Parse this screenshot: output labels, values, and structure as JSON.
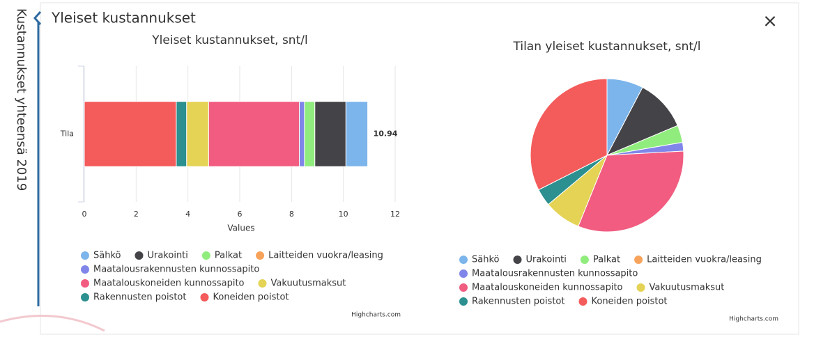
{
  "sidebar": {
    "label": "Kustannukset yhteensä 2019"
  },
  "header": {
    "title": "Yleiset kustannukset",
    "close": "×"
  },
  "chart_data": [
    {
      "type": "stacked-bar-horizontal",
      "title": "Yleiset kustannukset, snt/l",
      "categories": [
        "Tila"
      ],
      "y_label": "Values",
      "ylim": [
        0,
        12
      ],
      "yticks": [
        0,
        2,
        4,
        6,
        8,
        10,
        12
      ],
      "grid": true,
      "total": 10.94,
      "credit": "Highcharts.com",
      "series": [
        {
          "name": "Sähkö",
          "color": "#7cb5ec",
          "values": [
            0.84
          ]
        },
        {
          "name": "Urakointi",
          "color": "#434348",
          "values": [
            1.2
          ]
        },
        {
          "name": "Palkat",
          "color": "#90ed7d",
          "values": [
            0.4
          ]
        },
        {
          "name": "Laitteiden vuokra/leasing",
          "color": "#f7a35c",
          "values": [
            0
          ]
        },
        {
          "name": "Maatalousrakennusten kunnossapito",
          "color": "#8085e9",
          "values": [
            0.2
          ]
        },
        {
          "name": "Maatalouskoneiden kunnossapito",
          "color": "#f15c80",
          "values": [
            3.5
          ]
        },
        {
          "name": "Vakuutusmaksut",
          "color": "#e4d354",
          "values": [
            0.85
          ]
        },
        {
          "name": "Rakennusten poistot",
          "color": "#2b908f",
          "values": [
            0.4
          ]
        },
        {
          "name": "Koneiden poistot",
          "color": "#f45b5b",
          "values": [
            3.55
          ]
        }
      ]
    },
    {
      "type": "pie",
      "title": "Tilan yleiset kustannukset, snt/l",
      "credit": "Highcharts.com",
      "categories": [
        "Sähkö",
        "Urakointi",
        "Palkat",
        "Laitteiden vuokra/leasing",
        "Maatalousrakennusten kunnossapito",
        "Maatalouskoneiden kunnossapito",
        "Vakuutusmaksut",
        "Rakennusten poistot",
        "Koneiden poistot"
      ],
      "colors": [
        "#7cb5ec",
        "#434348",
        "#90ed7d",
        "#f7a35c",
        "#8085e9",
        "#f15c80",
        "#e4d354",
        "#2b908f",
        "#f45b5b"
      ],
      "values": [
        0.84,
        1.2,
        0.4,
        0,
        0.2,
        3.5,
        0.85,
        0.4,
        3.55
      ]
    }
  ]
}
